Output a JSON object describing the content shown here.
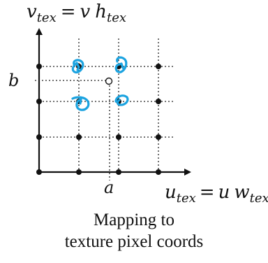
{
  "diagram": {
    "v_axis": {
      "var": "v",
      "sub": "tex",
      "rhs_var1": "v",
      "rhs_var2": "h",
      "rhs_sub": "tex",
      "eq": "="
    },
    "u_axis": {
      "var": "u",
      "sub": "tex",
      "rhs_var1": "u",
      "rhs_var2": "w",
      "rhs_sub": "tex",
      "eq": "="
    },
    "label_a": "a",
    "label_b": "b",
    "caption_line1": "Mapping to",
    "caption_line2": "texture pixel coords",
    "colors": {
      "ink": "#111111",
      "highlight": "#1ba3e0"
    }
  }
}
